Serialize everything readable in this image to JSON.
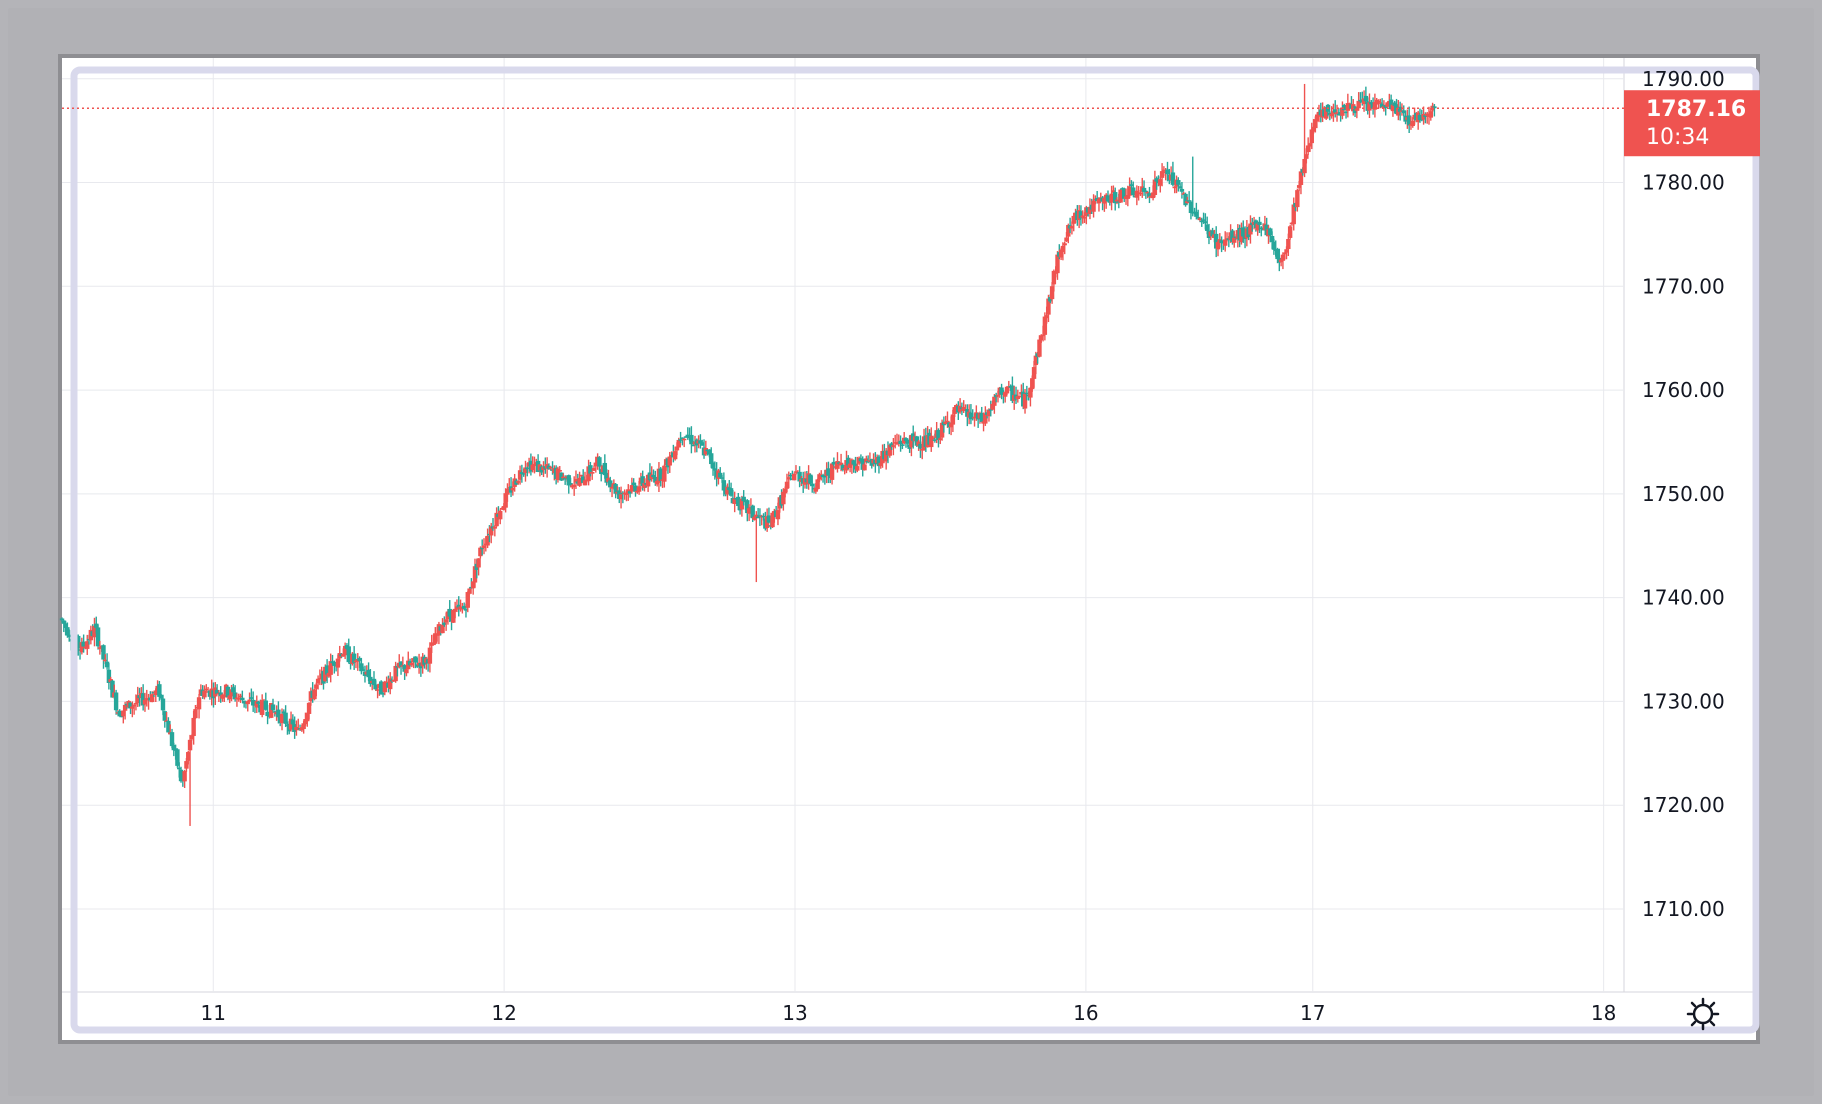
{
  "colors": {
    "up": "#ef5350",
    "down": "#26a69a",
    "grid": "#e8e9ee",
    "highlight": "#d9d9ec",
    "last_price_line": "#ef5350"
  },
  "icons": {
    "settings": "gear-icon"
  },
  "last_price": {
    "value": "1787.16",
    "countdown": "10:34"
  },
  "chart_data": {
    "type": "candlestick",
    "title": "",
    "xlabel": "",
    "ylabel": "",
    "ylim": [
      1702,
      1792
    ],
    "y_ticks": [
      "1790.00",
      "1780.00",
      "1770.00",
      "1760.00",
      "1750.00",
      "1740.00",
      "1730.00",
      "1720.00",
      "1710.00"
    ],
    "x_ticks": [
      {
        "label": "11",
        "t": 1.0
      },
      {
        "label": "12",
        "t": 2.0
      },
      {
        "label": "13",
        "t": 3.0
      },
      {
        "label": "16",
        "t": 4.0
      },
      {
        "label": "17",
        "t": 4.78
      },
      {
        "label": "18",
        "t": 5.78
      }
    ],
    "t_range": [
      0.48,
      5.85
    ],
    "last_price_value": 1787.16,
    "anchors": [
      [
        0.48,
        1738
      ],
      [
        0.55,
        1735
      ],
      [
        0.6,
        1737
      ],
      [
        0.68,
        1729
      ],
      [
        0.75,
        1730
      ],
      [
        0.82,
        1731
      ],
      [
        0.9,
        1722
      ],
      [
        0.96,
        1731
      ],
      [
        1.05,
        1731
      ],
      [
        1.12,
        1730
      ],
      [
        1.22,
        1729
      ],
      [
        1.3,
        1727
      ],
      [
        1.35,
        1731
      ],
      [
        1.45,
        1735
      ],
      [
        1.52,
        1733
      ],
      [
        1.58,
        1731
      ],
      [
        1.64,
        1733
      ],
      [
        1.74,
        1734
      ],
      [
        1.8,
        1738
      ],
      [
        1.87,
        1739
      ],
      [
        1.93,
        1745
      ],
      [
        2.0,
        1749
      ],
      [
        2.08,
        1753
      ],
      [
        2.18,
        1752
      ],
      [
        2.26,
        1751
      ],
      [
        2.33,
        1753
      ],
      [
        2.4,
        1750
      ],
      [
        2.48,
        1751
      ],
      [
        2.55,
        1752
      ],
      [
        2.62,
        1756
      ],
      [
        2.7,
        1754
      ],
      [
        2.78,
        1750
      ],
      [
        2.86,
        1748
      ],
      [
        2.92,
        1747
      ],
      [
        3.0,
        1752
      ],
      [
        3.08,
        1751
      ],
      [
        3.16,
        1753
      ],
      [
        3.28,
        1753
      ],
      [
        3.36,
        1755
      ],
      [
        3.48,
        1755
      ],
      [
        3.56,
        1758
      ],
      [
        3.65,
        1757
      ],
      [
        3.72,
        1760
      ],
      [
        3.8,
        1759
      ],
      [
        3.86,
        1766
      ],
      [
        3.92,
        1774
      ],
      [
        3.98,
        1777
      ],
      [
        4.05,
        1778
      ],
      [
        4.14,
        1779
      ],
      [
        4.22,
        1779
      ],
      [
        4.28,
        1781
      ],
      [
        4.36,
        1778
      ],
      [
        4.46,
        1774
      ],
      [
        4.54,
        1775
      ],
      [
        4.62,
        1776
      ],
      [
        4.68,
        1772
      ],
      [
        4.74,
        1780
      ],
      [
        4.79,
        1786
      ],
      [
        4.86,
        1787
      ],
      [
        4.96,
        1787.5
      ],
      [
        5.06,
        1787.3
      ],
      [
        5.12,
        1786
      ],
      [
        5.16,
        1786.5
      ],
      [
        5.2,
        1787.16
      ]
    ],
    "spikes": [
      [
        0.92,
        1718
      ],
      [
        2.87,
        1741.5
      ],
      [
        4.75,
        1789.5
      ],
      [
        4.37,
        1782.5
      ],
      [
        4.3,
        1782
      ]
    ]
  }
}
